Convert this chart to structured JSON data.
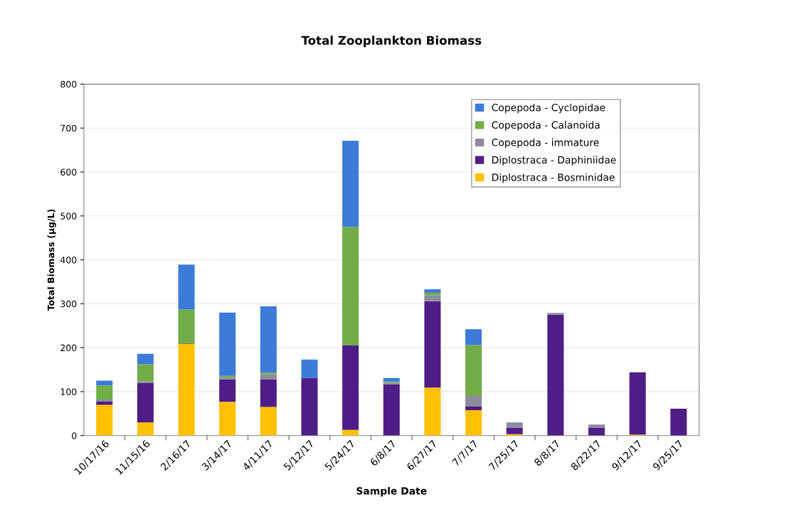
{
  "chart_data": {
    "type": "bar",
    "title": "Total Zooplankton Biomass",
    "xlabel": "Sample Date",
    "ylabel": "Total Biomass (µg/L)",
    "categories": [
      "10/17/16",
      "11/15/16",
      "2/16/17",
      "3/14/17",
      "4/11/17",
      "5/12/17",
      "5/24/17",
      "6/8/17",
      "6/27/17",
      "7/7/17",
      "7/25/17",
      "8/8/17",
      "8/22/17",
      "9/12/17",
      "9/25/17"
    ],
    "stacked": true,
    "ylim": [
      0,
      800
    ],
    "yticks": [
      0,
      100,
      200,
      300,
      400,
      500,
      600,
      700,
      800
    ],
    "grid": "y",
    "legend": "top right",
    "series": [
      {
        "name": "Diplostraca - Bosminidae",
        "color": "#ffc000",
        "values": [
          70,
          30,
          209,
          77,
          65,
          null,
          13,
          0,
          109,
          58,
          3,
          null,
          0,
          2,
          0
        ]
      },
      {
        "name": "Diplostraca - Daphiniidae",
        "color": "#4f1d86",
        "values": [
          8,
          90,
          1,
          51,
          63,
          131,
          193,
          117,
          197,
          8,
          15,
          275,
          18,
          142,
          61
        ]
      },
      {
        "name": "Copepoda - immature",
        "color": "#8c8c9e",
        "values": [
          4,
          3,
          0,
          4,
          11,
          0,
          0,
          3,
          13,
          24,
          11,
          4,
          7,
          0,
          0
        ]
      },
      {
        "name": "Copepoda - Calanoida",
        "color": "#70ad47",
        "values": [
          32,
          39,
          77,
          4,
          4,
          0,
          269,
          3,
          6,
          116,
          0,
          0,
          0,
          0,
          0
        ]
      },
      {
        "name": "Copepoda - Cyclopidae",
        "color": "#3d7bd9",
        "values": [
          11,
          24,
          102,
          144,
          151,
          42,
          196,
          8,
          8,
          36,
          1,
          0,
          0,
          0,
          0
        ]
      }
    ]
  }
}
